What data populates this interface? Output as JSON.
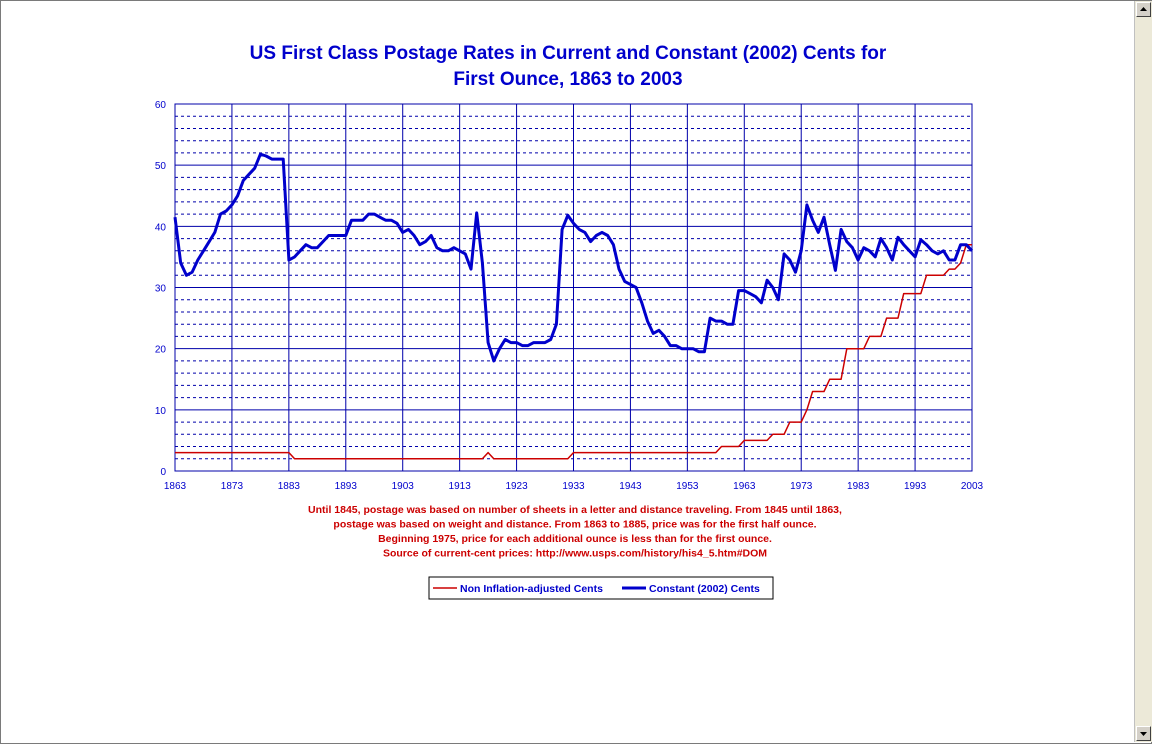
{
  "chart_data": {
    "type": "line",
    "title_lines": [
      "US First Class Postage Rates in Current and Constant (2002) Cents for",
      "First Ounce, 1863 to 2003"
    ],
    "xlim": [
      1863,
      2003
    ],
    "x_ticks": [
      1863,
      1873,
      1883,
      1893,
      1903,
      1913,
      1923,
      1933,
      1943,
      1953,
      1963,
      1973,
      1983,
      1993,
      2003
    ],
    "ylim": [
      0,
      60
    ],
    "y_ticks": [
      0,
      10,
      20,
      30,
      40,
      50,
      60
    ],
    "grid": true,
    "legend_position": "bottom-center",
    "notes": [
      "Until 1845, postage was based on number of sheets in a letter and distance traveling.  From 1845 until 1863,",
      "postage was based on weight and distance.  From 1863 to 1885, price was for the first half ounce.",
      "Beginning 1975, price for each additional ounce is less than for the first ounce.",
      "Source of current-cent prices: http://www.usps.com/history/his4_5.htm#DOM"
    ],
    "series": [
      {
        "name": "Non Inflation-adjusted  Cents",
        "color": "#cc0000",
        "points": [
          [
            1863,
            3
          ],
          [
            1883,
            3
          ],
          [
            1884,
            2
          ],
          [
            1917,
            2
          ],
          [
            1918,
            3
          ],
          [
            1919,
            2
          ],
          [
            1932,
            2
          ],
          [
            1933,
            3
          ],
          [
            1958,
            3
          ],
          [
            1959,
            4
          ],
          [
            1962,
            4
          ],
          [
            1963,
            5
          ],
          [
            1967,
            5
          ],
          [
            1968,
            6
          ],
          [
            1970,
            6
          ],
          [
            1971,
            8
          ],
          [
            1973,
            8
          ],
          [
            1974,
            10
          ],
          [
            1975,
            13
          ],
          [
            1977,
            13
          ],
          [
            1978,
            15
          ],
          [
            1980,
            15
          ],
          [
            1981,
            20
          ],
          [
            1984,
            20
          ],
          [
            1985,
            22
          ],
          [
            1987,
            22
          ],
          [
            1988,
            25
          ],
          [
            1990,
            25
          ],
          [
            1991,
            29
          ],
          [
            1994,
            29
          ],
          [
            1995,
            32
          ],
          [
            1998,
            32
          ],
          [
            1999,
            33
          ],
          [
            2000,
            33
          ],
          [
            2001,
            34
          ],
          [
            2002,
            37
          ],
          [
            2003,
            37
          ]
        ]
      },
      {
        "name": "Constant (2002) Cents",
        "color": "#0000cc",
        "points": [
          [
            1863,
            41.5
          ],
          [
            1864,
            34
          ],
          [
            1865,
            32
          ],
          [
            1866,
            32.5
          ],
          [
            1867,
            34.5
          ],
          [
            1868,
            36
          ],
          [
            1869,
            37.5
          ],
          [
            1870,
            39
          ],
          [
            1871,
            42
          ],
          [
            1872,
            42.5
          ],
          [
            1873,
            43.5
          ],
          [
            1874,
            45
          ],
          [
            1875,
            47.5
          ],
          [
            1876,
            48.5
          ],
          [
            1877,
            49.5
          ],
          [
            1878,
            51.8
          ],
          [
            1879,
            51.5
          ],
          [
            1880,
            51
          ],
          [
            1881,
            51
          ],
          [
            1882,
            51
          ],
          [
            1883,
            34.5
          ],
          [
            1884,
            35
          ],
          [
            1885,
            36
          ],
          [
            1886,
            37
          ],
          [
            1887,
            36.5
          ],
          [
            1888,
            36.5
          ],
          [
            1889,
            37.5
          ],
          [
            1890,
            38.5
          ],
          [
            1891,
            38.5
          ],
          [
            1892,
            38.5
          ],
          [
            1893,
            38.5
          ],
          [
            1894,
            41
          ],
          [
            1895,
            41
          ],
          [
            1896,
            41
          ],
          [
            1897,
            42
          ],
          [
            1898,
            42
          ],
          [
            1899,
            41.5
          ],
          [
            1900,
            41
          ],
          [
            1901,
            41
          ],
          [
            1902,
            40.5
          ],
          [
            1903,
            39
          ],
          [
            1904,
            39.5
          ],
          [
            1905,
            38.5
          ],
          [
            1906,
            37
          ],
          [
            1907,
            37.5
          ],
          [
            1908,
            38.5
          ],
          [
            1909,
            36.5
          ],
          [
            1910,
            36
          ],
          [
            1911,
            36
          ],
          [
            1912,
            36.5
          ],
          [
            1913,
            36
          ],
          [
            1914,
            35.5
          ],
          [
            1915,
            33
          ],
          [
            1916,
            42.2
          ],
          [
            1917,
            34
          ],
          [
            1918,
            21
          ],
          [
            1919,
            18
          ],
          [
            1920,
            20
          ],
          [
            1921,
            21.5
          ],
          [
            1922,
            21
          ],
          [
            1923,
            21
          ],
          [
            1924,
            20.5
          ],
          [
            1925,
            20.5
          ],
          [
            1926,
            21
          ],
          [
            1927,
            21
          ],
          [
            1928,
            21
          ],
          [
            1929,
            21.5
          ],
          [
            1930,
            24
          ],
          [
            1931,
            39.5
          ],
          [
            1932,
            41.8
          ],
          [
            1933,
            40.5
          ],
          [
            1934,
            39.5
          ],
          [
            1935,
            39
          ],
          [
            1936,
            37.5
          ],
          [
            1937,
            38.5
          ],
          [
            1938,
            39
          ],
          [
            1939,
            38.5
          ],
          [
            1940,
            37
          ],
          [
            1941,
            33
          ],
          [
            1942,
            31
          ],
          [
            1943,
            30.5
          ],
          [
            1944,
            30
          ],
          [
            1945,
            27.5
          ],
          [
            1946,
            24.5
          ],
          [
            1947,
            22.5
          ],
          [
            1948,
            23
          ],
          [
            1949,
            22
          ],
          [
            1950,
            20.5
          ],
          [
            1951,
            20.5
          ],
          [
            1952,
            20
          ],
          [
            1953,
            20
          ],
          [
            1954,
            20
          ],
          [
            1955,
            19.5
          ],
          [
            1956,
            19.5
          ],
          [
            1957,
            25
          ],
          [
            1958,
            24.5
          ],
          [
            1959,
            24.5
          ],
          [
            1960,
            24
          ],
          [
            1961,
            24
          ],
          [
            1962,
            29.5
          ],
          [
            1963,
            29.5
          ],
          [
            1964,
            29
          ],
          [
            1965,
            28.5
          ],
          [
            1966,
            27.5
          ],
          [
            1967,
            31.2
          ],
          [
            1968,
            30
          ],
          [
            1969,
            28
          ],
          [
            1970,
            35.5
          ],
          [
            1971,
            34.5
          ],
          [
            1972,
            32.5
          ],
          [
            1973,
            36
          ],
          [
            1974,
            43.5
          ],
          [
            1975,
            41
          ],
          [
            1976,
            39
          ],
          [
            1977,
            41.5
          ],
          [
            1978,
            37
          ],
          [
            1979,
            32.8
          ],
          [
            1980,
            39.5
          ],
          [
            1981,
            37.5
          ],
          [
            1982,
            36.5
          ],
          [
            1983,
            34.5
          ],
          [
            1984,
            36.5
          ],
          [
            1985,
            36
          ],
          [
            1986,
            35
          ],
          [
            1987,
            38
          ],
          [
            1988,
            36.5
          ],
          [
            1989,
            34.5
          ],
          [
            1990,
            38.2
          ],
          [
            1991,
            37
          ],
          [
            1992,
            36
          ],
          [
            1993,
            35
          ],
          [
            1994,
            37.8
          ],
          [
            1995,
            37
          ],
          [
            1996,
            36
          ],
          [
            1997,
            35.5
          ],
          [
            1998,
            36
          ],
          [
            1999,
            34.5
          ],
          [
            2000,
            34.5
          ],
          [
            2001,
            37
          ],
          [
            2002,
            37
          ],
          [
            2003,
            36
          ]
        ]
      }
    ]
  }
}
